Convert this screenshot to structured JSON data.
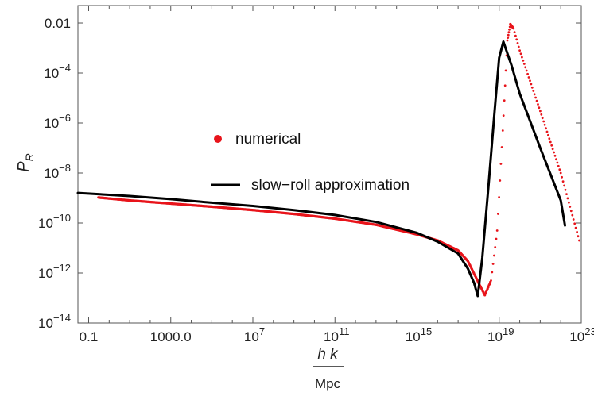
{
  "chart_data": {
    "type": "line",
    "x_scale": "log",
    "y_scale": "log",
    "xlim": [
      0.03,
      1e+23
    ],
    "ylim": [
      1e-14,
      0.05
    ],
    "grid": false,
    "frame": "box",
    "legend_position": "center-left",
    "xlabel": {
      "numerator": "h k",
      "denominator": "Mpc"
    },
    "ylabel": {
      "base": "P",
      "subscript": "R"
    },
    "x_ticks": [
      {
        "value": 0.1,
        "label": "0.1"
      },
      {
        "value": 1000,
        "label": "1000.0"
      },
      {
        "value": 10000000.0,
        "label": "10",
        "exp": "7"
      },
      {
        "value": 100000000000.0,
        "label": "10",
        "exp": "11"
      },
      {
        "value": 1000000000000000.0,
        "label": "10",
        "exp": "15"
      },
      {
        "value": 1e+19,
        "label": "10",
        "exp": "19"
      },
      {
        "value": 1e+23,
        "label": "10",
        "exp": "23"
      }
    ],
    "y_ticks": [
      {
        "value": 0.01,
        "label": "0.01"
      },
      {
        "value": 0.0001,
        "label": "10",
        "exp": "−4"
      },
      {
        "value": 1e-06,
        "label": "10",
        "exp": "−6"
      },
      {
        "value": 1e-08,
        "label": "10",
        "exp": "−8"
      },
      {
        "value": 1e-10,
        "label": "10",
        "exp": "−10"
      },
      {
        "value": 1e-12,
        "label": "10",
        "exp": "−12"
      },
      {
        "value": 1e-14,
        "label": "10",
        "exp": "−14"
      }
    ],
    "series": [
      {
        "name": "numerical",
        "style": "points",
        "color": "#e8141b",
        "points": [
          [
            0.3,
            1.05e-09
          ],
          [
            10,
            8e-10
          ],
          [
            1000,
            6e-10
          ],
          [
            100000.0,
            4.5e-10
          ],
          [
            10000000.0,
            3.3e-10
          ],
          [
            1000000000.0,
            2.3e-10
          ],
          [
            100000000000.0,
            1.5e-10
          ],
          [
            10000000000000.0,
            8.5e-11
          ],
          [
            1000000000000000.0,
            3.5e-11
          ],
          [
            1e+16,
            2e-11
          ],
          [
            1e+17,
            8e-12
          ],
          [
            3e+17,
            3e-12
          ],
          [
            1e+18,
            4e-13
          ],
          [
            2e+18,
            1.3e-13
          ],
          [
            4e+18,
            5e-13
          ],
          [
            8e+18,
            5e-11
          ],
          [
            1.5e+19,
            5e-07
          ],
          [
            2.5e+19,
            0.002
          ],
          [
            3.5e+19,
            0.009
          ],
          [
            5e+19,
            0.006
          ],
          [
            1e+20,
            0.0008
          ],
          [
            1e+21,
            3e-06
          ],
          [
            1e+22,
            1e-08
          ],
          [
            8e+22,
            2e-11
          ]
        ]
      },
      {
        "name": "slow−roll approximation",
        "style": "line",
        "color": "#000000",
        "points": [
          [
            0.03,
            1.6e-09
          ],
          [
            10,
            1.2e-09
          ],
          [
            1000,
            9e-10
          ],
          [
            100000.0,
            6.5e-10
          ],
          [
            10000000.0,
            4.8e-10
          ],
          [
            1000000000.0,
            3.3e-10
          ],
          [
            100000000000.0,
            2.1e-10
          ],
          [
            10000000000000.0,
            1.1e-10
          ],
          [
            1000000000000000.0,
            4e-11
          ],
          [
            1e+16,
            1.8e-11
          ],
          [
            1e+17,
            6e-12
          ],
          [
            3e+17,
            1.5e-12
          ],
          [
            6e+17,
            4e-13
          ],
          [
            9e+17,
            1.2e-13
          ],
          [
            1.5e+18,
            4e-12
          ],
          [
            3e+18,
            3e-09
          ],
          [
            6e+18,
            3e-06
          ],
          [
            1e+19,
            0.0004
          ],
          [
            1.6e+19,
            0.0018
          ],
          [
            4e+19,
            0.0002
          ],
          [
            1e+20,
            1.5e-05
          ],
          [
            1e+21,
            1e-07
          ],
          [
            1e+22,
            8e-10
          ],
          [
            1.6e+22,
            8e-11
          ]
        ]
      }
    ]
  }
}
